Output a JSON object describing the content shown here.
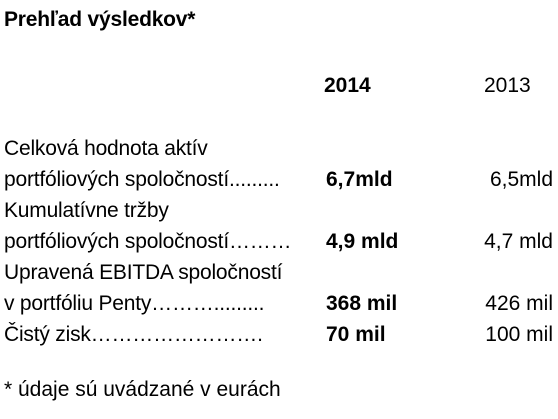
{
  "title": "Prehľad výsledkov*",
  "columns": {
    "current": "2014",
    "prior": "2013"
  },
  "rows": [
    {
      "line1": "Celková hodnota aktív",
      "line2": "portfóliových spoločností.........",
      "current": "6,7mld",
      "prior": "6,5mld"
    },
    {
      "line1": "Kumulatívne tržby",
      "line2": "portfóliových spoločností………",
      "current": "4,9 mld",
      "prior": "4,7 mld"
    },
    {
      "line1": "Upravená EBITDA spoločností",
      "line2": "v portfóliu Penty……….........",
      "current": "368 mil",
      "prior": "426 mil"
    },
    {
      "line1": "Čistý zisk…………………….",
      "current": "70 mil",
      "prior": "100 mil"
    }
  ],
  "footnote": "* údaje sú uvádzané v eurách"
}
